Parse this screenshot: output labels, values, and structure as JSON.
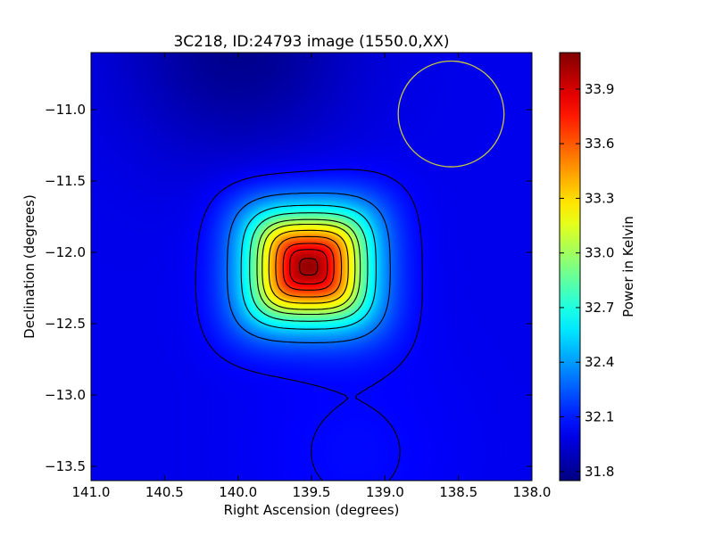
{
  "chart_data": {
    "type": "heatmap",
    "title": "3C218, ID:24793 image (1550.0,XX)",
    "xlabel": "Right Ascension (degrees)",
    "ylabel": "Declination (degrees)",
    "colorbar_label": "Power in Kelvin",
    "colormap": "jet",
    "xlim": [
      141.0,
      138.0
    ],
    "ylim": [
      -13.6,
      -10.6
    ],
    "x_ticks": [
      141.0,
      140.5,
      140.0,
      139.5,
      139.0,
      138.5,
      138.0
    ],
    "x_tick_labels": [
      "141.0",
      "140.5",
      "140.0",
      "139.5",
      "139.0",
      "138.5",
      "138.0"
    ],
    "y_ticks": [
      -11.0,
      -11.5,
      -12.0,
      -12.5,
      -13.0,
      -13.5
    ],
    "y_tick_labels": [
      "−11.0",
      "−11.5",
      "−12.0",
      "−12.5",
      "−13.0",
      "−13.5"
    ],
    "colorbar_range": [
      31.75,
      34.1
    ],
    "colorbar_ticks": [
      31.8,
      32.1,
      32.4,
      32.7,
      33.0,
      33.3,
      33.6,
      33.9
    ],
    "colorbar_tick_labels": [
      "31.8",
      "32.1",
      "32.4",
      "32.7",
      "33.0",
      "33.3",
      "33.6",
      "33.9"
    ],
    "source": {
      "ra": 139.52,
      "dec": -12.1,
      "peak": 34.05
    },
    "background_level": 32.0,
    "beam_circle": {
      "ra": 138.55,
      "dec": -11.03,
      "radius_deg": 0.36,
      "color": "#c8c83c"
    },
    "contour_levels": [
      32.05,
      32.3,
      32.55,
      32.75,
      32.95,
      33.1,
      33.3,
      33.5,
      33.7,
      33.85,
      34.0
    ],
    "grid": false
  }
}
